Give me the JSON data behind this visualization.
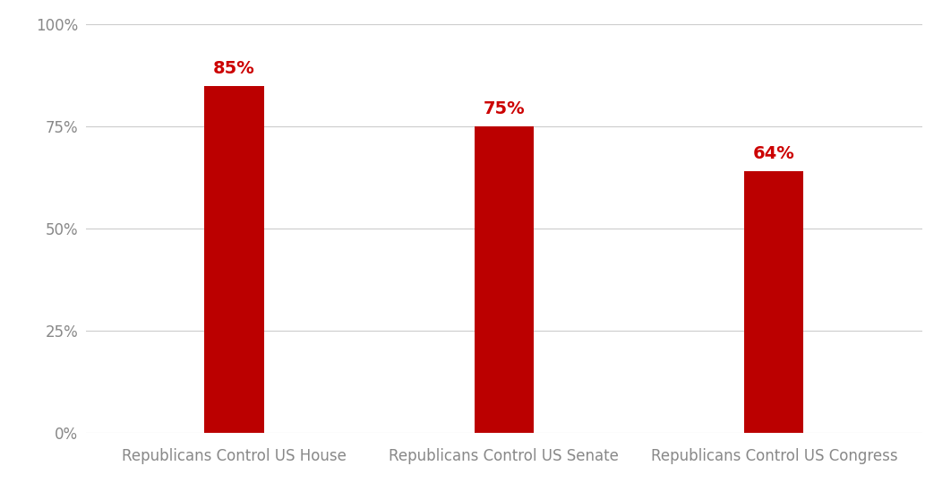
{
  "categories": [
    "Republicans Control US House",
    "Republicans Control US Senate",
    "Republicans Control US Congress"
  ],
  "values": [
    0.85,
    0.75,
    0.64
  ],
  "labels": [
    "85%",
    "75%",
    "64%"
  ],
  "bar_color": "#bb0000",
  "label_color": "#cc0000",
  "background_color": "#ffffff",
  "ylim": [
    0,
    1.0
  ],
  "yticks": [
    0,
    0.25,
    0.5,
    0.75,
    1.0
  ],
  "ytick_labels": [
    "0%",
    "25%",
    "50%",
    "75%",
    "100%"
  ],
  "grid_color": "#cccccc",
  "bar_width": 0.22,
  "label_fontsize": 14,
  "tick_fontsize": 12,
  "xlabel_fontsize": 12,
  "x_positions": [
    0,
    1,
    2
  ],
  "xlim": [
    -0.55,
    2.55
  ]
}
